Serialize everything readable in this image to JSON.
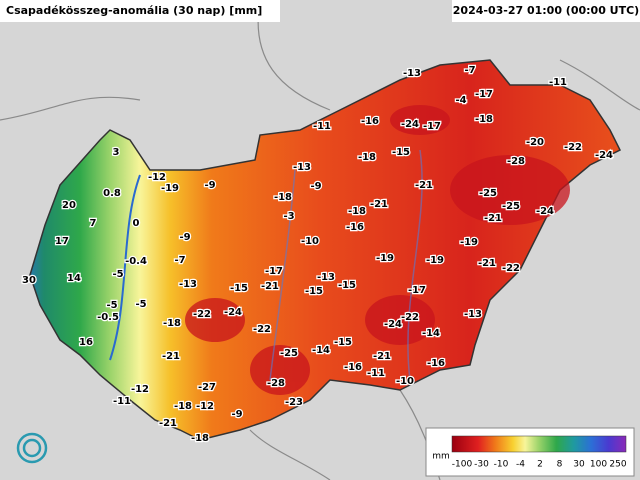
{
  "header": {
    "title": "Csapadékösszeg-anomália (30 nap) [mm]",
    "timestamp": "2024-03-27 01:00 (00:00 UTC)"
  },
  "labels": [
    -13,
    -7,
    -11,
    -4,
    -17,
    -11,
    -16,
    -24,
    -17,
    -18,
    -20,
    -22,
    -24,
    -18,
    -15,
    -28,
    3,
    -12,
    -19,
    -9,
    -13,
    -9,
    -18,
    -21,
    -25,
    0.8,
    20,
    7,
    -3,
    -18,
    -21,
    -25,
    -24,
    -21,
    0,
    -16,
    17,
    -9,
    -10,
    -19,
    -0.4,
    -7,
    -19,
    -19,
    -21,
    -22,
    -5,
    14,
    30,
    -17,
    -13,
    -13,
    -15,
    -21,
    -15,
    -15,
    -17,
    -5,
    -5,
    -0.5,
    -22,
    -24,
    -18,
    -24,
    -22,
    -14,
    -13,
    16,
    -22,
    -15,
    -21,
    -25,
    -14,
    -21,
    -16,
    -16,
    -11,
    -10,
    -27,
    -12,
    -28,
    -11,
    -18,
    -12,
    -23,
    -9,
    -21,
    -18
  ],
  "legend": {
    "unit": "mm",
    "ticks": [
      -100,
      -30,
      -10,
      -4,
      2,
      8,
      30,
      100,
      250
    ]
  }
}
